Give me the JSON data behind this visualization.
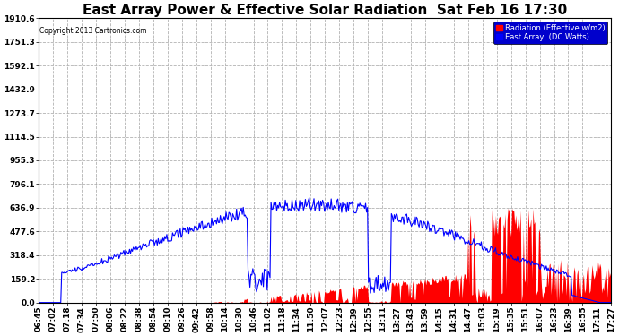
{
  "title": "East Array Power & Effective Solar Radiation  Sat Feb 16 17:30",
  "copyright": "Copyright 2013 Cartronics.com",
  "legend_radiation": "Radiation (Effective w/m2)",
  "legend_east": "East Array  (DC Watts)",
  "ymax": 1910.6,
  "ymin": 0.0,
  "yticks": [
    0.0,
    159.2,
    318.4,
    477.6,
    636.9,
    796.1,
    955.3,
    1114.5,
    1273.7,
    1432.9,
    1592.1,
    1751.3,
    1910.6
  ],
  "ytick_labels": [
    "0.0",
    "159.2",
    "318.4",
    "477.6",
    "636.9",
    "796.1",
    "955.3",
    "1114.5",
    "1273.7",
    "1432.9",
    "1592.1",
    "1751.3",
    "1910.6"
  ],
  "background_color": "#ffffff",
  "plot_bg_color": "#ffffff",
  "grid_color": "#aaaaaa",
  "radiation_color": "#ff0000",
  "east_array_color": "#0000ff",
  "title_fontsize": 11,
  "tick_fontsize": 6.5,
  "xtick_labels": [
    "06:45",
    "07:02",
    "07:18",
    "07:34",
    "07:50",
    "08:06",
    "08:22",
    "08:38",
    "08:54",
    "09:10",
    "09:26",
    "09:42",
    "09:58",
    "10:14",
    "10:30",
    "10:46",
    "11:02",
    "11:18",
    "11:34",
    "11:50",
    "12:07",
    "12:23",
    "12:39",
    "12:55",
    "13:11",
    "13:27",
    "13:43",
    "13:59",
    "14:15",
    "14:31",
    "14:47",
    "15:03",
    "15:19",
    "15:35",
    "15:51",
    "16:07",
    "16:23",
    "16:39",
    "16:55",
    "17:11",
    "17:27"
  ]
}
